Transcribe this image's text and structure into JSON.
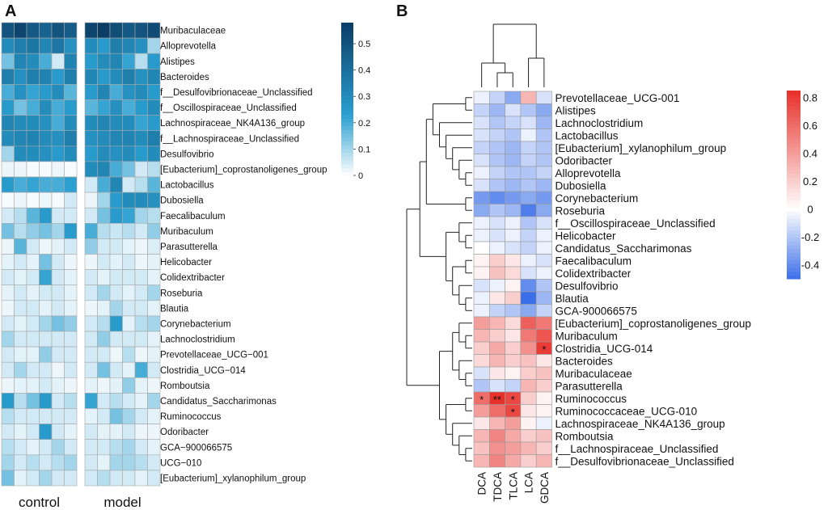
{
  "chart_data": [
    {
      "type": "heatmap",
      "panel_label": "A",
      "groups": [
        "control",
        "model"
      ],
      "samples_per_group": 6,
      "rows": [
        "Muribaculaceae",
        "Alloprevotella",
        "Alistipes",
        "Bacteroides",
        "f__Desulfovibrionaceae_Unclassified",
        "f__Oscillospiraceae_Unclassified",
        "Lachnospiraceae_NK4A136_group",
        "f__Lachnospiraceae_Unclassified",
        "Desulfovibrio",
        "[Eubacterium]_coprostanoligenes_group",
        "Lactobacillus",
        "Dubosiella",
        "Faecalibaculum",
        "Muribaculum",
        "Parasutterella",
        "Helicobacter",
        "Colidextribacter",
        "Roseburia",
        "Blautia",
        "Corynebacterium",
        "Lachnoclostridium",
        "Prevotellaceae_UCG−001",
        "Clostridia_UCG−014",
        "Romboutsia",
        "Candidatus_Saccharimonas",
        "Ruminococcus",
        "Odoribacter",
        "GCA−900066575",
        "UCG−010",
        "[Eubacterium]_xylanophilum_group"
      ],
      "values": [
        [
          0.5,
          0.55,
          0.48,
          0.45,
          0.5,
          0.47,
          0.55,
          0.58,
          0.52,
          0.48,
          0.5,
          0.53
        ],
        [
          0.3,
          0.35,
          0.38,
          0.32,
          0.38,
          0.28,
          0.3,
          0.25,
          0.35,
          0.32,
          0.28,
          0.1
        ],
        [
          0.15,
          0.32,
          0.3,
          0.2,
          0.05,
          0.33,
          0.25,
          0.3,
          0.32,
          0.22,
          0.08,
          0.25
        ],
        [
          0.35,
          0.28,
          0.35,
          0.33,
          0.25,
          0.35,
          0.32,
          0.25,
          0.3,
          0.35,
          0.28,
          0.32
        ],
        [
          0.2,
          0.28,
          0.22,
          0.25,
          0.3,
          0.18,
          0.25,
          0.32,
          0.2,
          0.28,
          0.3,
          0.25
        ],
        [
          0.25,
          0.15,
          0.2,
          0.3,
          0.2,
          0.25,
          0.18,
          0.22,
          0.28,
          0.2,
          0.25,
          0.3
        ],
        [
          0.32,
          0.3,
          0.3,
          0.28,
          0.2,
          0.3,
          0.3,
          0.32,
          0.3,
          0.3,
          0.22,
          0.25
        ],
        [
          0.3,
          0.32,
          0.33,
          0.3,
          0.28,
          0.35,
          0.28,
          0.3,
          0.32,
          0.33,
          0.3,
          0.35
        ],
        [
          0.1,
          0.3,
          0.3,
          0.28,
          0.25,
          0.3,
          0.25,
          0.3,
          0.28,
          0.3,
          0.25,
          0.3
        ],
        [
          0.02,
          0.02,
          0.01,
          0.01,
          0.02,
          0.01,
          0.3,
          0.32,
          0.2,
          0.15,
          0.05,
          0.08
        ],
        [
          0.25,
          0.2,
          0.22,
          0.2,
          0.2,
          0.23,
          0.05,
          0.2,
          0.32,
          0.05,
          0.08,
          0.18
        ],
        [
          0.01,
          0.02,
          0.01,
          0.02,
          0.01,
          0.05,
          0.02,
          0.1,
          0.25,
          0.3,
          0.3,
          0.28
        ],
        [
          0.05,
          0.08,
          0.18,
          0.25,
          0.05,
          0.05,
          0.05,
          0.15,
          0.25,
          0.22,
          0.1,
          0.08
        ],
        [
          0.15,
          0.08,
          0.12,
          0.15,
          0.1,
          0.25,
          0.2,
          0.08,
          0.06,
          0.08,
          0.05,
          0.12
        ],
        [
          0.02,
          0.18,
          0.05,
          0.02,
          0.03,
          0.05,
          0.12,
          0.05,
          0.05,
          0.03,
          0.02,
          0.04
        ],
        [
          0.03,
          0.05,
          0.03,
          0.15,
          0.05,
          0.02,
          0.02,
          0.05,
          0.03,
          0.05,
          0.02,
          0.03
        ],
        [
          0.05,
          0.03,
          0.05,
          0.22,
          0.05,
          0.03,
          0.05,
          0.03,
          0.05,
          0.05,
          0.05,
          0.03
        ],
        [
          0.03,
          0.05,
          0.03,
          0.05,
          0.05,
          0.03,
          0.05,
          0.1,
          0.05,
          0.03,
          0.05,
          0.1
        ],
        [
          0.02,
          0.05,
          0.05,
          0.03,
          0.05,
          0.03,
          0.02,
          0.03,
          0.1,
          0.05,
          0.05,
          0.03
        ],
        [
          0.05,
          0.03,
          0.05,
          0.1,
          0.15,
          0.12,
          0.05,
          0.08,
          0.25,
          0.03,
          0.08,
          0.1
        ],
        [
          0.1,
          0.05,
          0.05,
          0.05,
          0.05,
          0.05,
          0.05,
          0.12,
          0.05,
          0.05,
          0.05,
          0.03
        ],
        [
          0.05,
          0.03,
          0.03,
          0.12,
          0.05,
          0.05,
          0.05,
          0.05,
          0.02,
          0.08,
          0.02,
          0.03
        ],
        [
          0.05,
          0.1,
          0.05,
          0.05,
          0.02,
          0.05,
          0.05,
          0.15,
          0.05,
          0.03,
          0.2,
          0.05
        ],
        [
          0.02,
          0.03,
          0.03,
          0.05,
          0.03,
          0.02,
          0.03,
          0.02,
          0.03,
          0.12,
          0.03,
          0.02
        ],
        [
          0.25,
          0.08,
          0.15,
          0.25,
          0.05,
          0.08,
          0.22,
          0.05,
          0.08,
          0.05,
          0.03,
          0.1
        ],
        [
          0.08,
          0.05,
          0.05,
          0.05,
          0.05,
          0.05,
          0.03,
          0.05,
          0.15,
          0.1,
          0.05,
          0.03
        ],
        [
          0.05,
          0.03,
          0.05,
          0.25,
          0.05,
          0.03,
          0.05,
          0.03,
          0.03,
          0.05,
          0.02,
          0.02
        ],
        [
          0.08,
          0.05,
          0.03,
          0.05,
          0.1,
          0.05,
          0.05,
          0.05,
          0.08,
          0.1,
          0.05,
          0.03
        ],
        [
          0.1,
          0.05,
          0.08,
          0.05,
          0.08,
          0.1,
          0.05,
          0.03,
          0.1,
          0.1,
          0.08,
          0.05
        ],
        [
          0.15,
          0.03,
          0.05,
          0.1,
          0.05,
          0.05,
          0.05,
          0.08,
          0.05,
          0.05,
          0.03,
          0.05
        ]
      ],
      "colorbar": {
        "min": 0,
        "max": 0.58,
        "ticks": [
          "0",
          "0.1",
          "0.2",
          "0.3",
          "0.4",
          "0.5"
        ],
        "low_color": "#ffffff",
        "mid_color": "#2a9fd0",
        "high_color": "#0b3d66"
      }
    },
    {
      "type": "heatmap",
      "panel_label": "B",
      "columns": [
        "DCA",
        "TDCA",
        "TLCA",
        "LCA",
        "GDCA"
      ],
      "rows": [
        "Prevotellaceae_UCG-001",
        "Alistipes",
        "Lachnoclostridium",
        "Lactobacillus",
        "[Eubacterium]_xylanophilum_group",
        "Odoribacter",
        "Alloprevotella",
        "Dubosiella",
        "Corynebacterium",
        "Roseburia",
        "f__Oscillospiraceae_Unclassified",
        "Helicobacter",
        "Candidatus_Saccharimonas",
        "Faecalibaculum",
        "Colidextribacter",
        "Desulfovibrio",
        "Blautia",
        "GCA-900066575",
        "[Eubacterium]_coprostanoligenes_group",
        "Muribaculum",
        "Clostridia_UCG-014",
        "Bacteroides",
        "Muribaculaceae",
        "Parasutterella",
        "Ruminococcus",
        "Ruminococcaceae_UCG-010",
        "Lachnospiraceae_NK4A136_group",
        "Romboutsia",
        "f__Lachnospiraceae_Unclassified",
        "f__Desulfovibrionaceae_Unclassified"
      ],
      "values": [
        [
          -0.05,
          -0.15,
          -0.3,
          0.3,
          -0.1
        ],
        [
          -0.15,
          -0.25,
          -0.1,
          -0.2,
          -0.3
        ],
        [
          -0.1,
          -0.2,
          -0.15,
          -0.1,
          -0.25
        ],
        [
          -0.1,
          -0.15,
          -0.2,
          -0.05,
          -0.2
        ],
        [
          -0.15,
          -0.2,
          -0.25,
          -0.15,
          -0.2
        ],
        [
          -0.1,
          -0.2,
          -0.25,
          -0.15,
          -0.2
        ],
        [
          -0.05,
          -0.15,
          -0.2,
          -0.2,
          -0.15
        ],
        [
          -0.1,
          -0.2,
          -0.25,
          -0.2,
          -0.25
        ],
        [
          -0.35,
          -0.4,
          -0.35,
          -0.3,
          -0.35
        ],
        [
          -0.3,
          -0.2,
          -0.25,
          -0.45,
          -0.3
        ],
        [
          -0.05,
          -0.1,
          -0.05,
          -0.2,
          -0.1
        ],
        [
          -0.05,
          -0.1,
          -0.05,
          -0.15,
          -0.05
        ],
        [
          0.0,
          -0.05,
          -0.1,
          -0.15,
          -0.05
        ],
        [
          0.05,
          0.2,
          0.1,
          -0.05,
          -0.1
        ],
        [
          0.05,
          0.25,
          0.15,
          -0.1,
          -0.05
        ],
        [
          -0.1,
          -0.05,
          0.05,
          -0.4,
          -0.2
        ],
        [
          -0.05,
          0.1,
          0.2,
          -0.5,
          -0.25
        ],
        [
          -0.05,
          -0.15,
          -0.2,
          -0.3,
          -0.15
        ],
        [
          0.4,
          0.3,
          0.15,
          0.65,
          0.55
        ],
        [
          0.3,
          0.2,
          0.1,
          0.55,
          0.7
        ],
        [
          0.2,
          0.35,
          0.2,
          0.45,
          0.8
        ],
        [
          0.15,
          0.3,
          0.2,
          0.25,
          0.1
        ],
        [
          -0.1,
          0.1,
          0.05,
          0.2,
          0.25
        ],
        [
          -0.2,
          -0.1,
          -0.15,
          0.3,
          0.2
        ],
        [
          0.6,
          0.9,
          0.75,
          0.2,
          0.05
        ],
        [
          0.4,
          0.6,
          0.75,
          0.1,
          0.05
        ],
        [
          0.1,
          0.3,
          0.4,
          0.05,
          -0.05
        ],
        [
          0.3,
          0.5,
          0.35,
          0.2,
          0.25
        ],
        [
          0.25,
          0.45,
          0.4,
          0.3,
          0.2
        ],
        [
          0.3,
          0.5,
          0.35,
          0.2,
          0.3
        ]
      ],
      "significance": [
        {
          "row": "Ruminococcus",
          "column": "DCA",
          "mark": "*"
        },
        {
          "row": "Ruminococcus",
          "column": "TDCA",
          "mark": "**"
        },
        {
          "row": "Ruminococcus",
          "column": "TLCA",
          "mark": "*"
        },
        {
          "row": "Ruminococcaceae_UCG-010",
          "column": "TLCA",
          "mark": "*"
        },
        {
          "row": "Clostridia_UCG-014",
          "column": "GDCA",
          "mark": "*"
        }
      ],
      "colorbar": {
        "min": -0.5,
        "max": 0.85,
        "ticks": [
          "0.8",
          "0.6",
          "0.4",
          "0.2",
          "0",
          "-0.2",
          "-0.4"
        ],
        "neg_color": "#3b6fe8",
        "zero_color": "#ffffff",
        "pos_color": "#e8302a"
      }
    }
  ]
}
